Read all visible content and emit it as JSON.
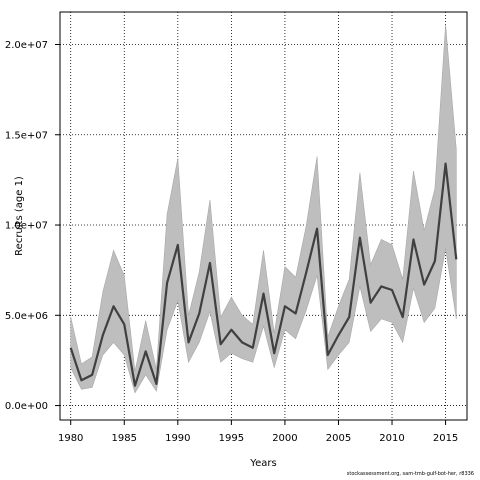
{
  "chart_data": {
    "type": "line",
    "title": "",
    "xlabel": "Years",
    "ylabel": "Recruits (age 1)",
    "xlim": [
      1979,
      2017
    ],
    "ylim": [
      -800000,
      21800000
    ],
    "x_ticks": [
      1980,
      1985,
      1990,
      1995,
      2000,
      2005,
      2010,
      2015
    ],
    "x_tick_labels": [
      "1980",
      "1985",
      "1990",
      "1995",
      "2000",
      "2005",
      "2010",
      "2015"
    ],
    "y_ticks": [
      0,
      5000000,
      10000000,
      15000000,
      20000000
    ],
    "y_tick_labels": [
      "0.0e+00",
      "5.0e+06",
      "1.0e+07",
      "1.5e+07",
      "2.0e+07"
    ],
    "grid": true,
    "colors": {
      "line": "#404040",
      "band": "#bebebe",
      "band_edge": "#a8a8a8",
      "grid": "#000000"
    },
    "x": [
      1980,
      1981,
      1982,
      1983,
      1984,
      1985,
      1986,
      1987,
      1988,
      1989,
      1990,
      1991,
      1992,
      1993,
      1994,
      1995,
      1996,
      1997,
      1998,
      1999,
      2000,
      2001,
      2002,
      2003,
      2004,
      2005,
      2006,
      2007,
      2008,
      2009,
      2010,
      2011,
      2012,
      2013,
      2014,
      2015,
      2016
    ],
    "series": [
      {
        "type": "line",
        "values": [
          3200000,
          1400000,
          1700000,
          3900000,
          5500000,
          4500000,
          1100000,
          3000000,
          1200000,
          6800000,
          8900000,
          3500000,
          5100000,
          7900000,
          3400000,
          4200000,
          3500000,
          3200000,
          6200000,
          2900000,
          5500000,
          5100000,
          7400000,
          9800000,
          2800000,
          3900000,
          4900000,
          9300000,
          5700000,
          6600000,
          6400000,
          4900000,
          9200000,
          6700000,
          8000000,
          13400000,
          8100000
        ]
      },
      {
        "type": "band",
        "lower": [
          2100000,
          900000,
          1000000,
          2800000,
          3500000,
          2800000,
          700000,
          1700000,
          800000,
          4200000,
          5800000,
          2400000,
          3500000,
          5200000,
          2400000,
          2900000,
          2600000,
          2400000,
          4400000,
          2100000,
          4200000,
          3700000,
          5300000,
          7200000,
          2000000,
          2800000,
          3500000,
          6600000,
          4100000,
          4800000,
          4600000,
          3500000,
          6500000,
          4600000,
          5400000,
          8700000,
          4800000
        ],
        "upper": [
          4900000,
          2300000,
          2700000,
          6300000,
          8600000,
          7200000,
          1900000,
          4700000,
          2000000,
          10600000,
          13700000,
          5000000,
          7400000,
          11400000,
          4900000,
          6000000,
          5000000,
          4500000,
          8600000,
          4000000,
          7700000,
          7100000,
          10000000,
          13800000,
          3800000,
          5500000,
          7000000,
          12900000,
          7800000,
          9200000,
          8900000,
          7000000,
          13000000,
          9700000,
          12000000,
          21100000,
          14200000
        ]
      }
    ]
  },
  "footer_text": "stockassessment.org, sam-tmb-gulf-bot-her, r8336"
}
